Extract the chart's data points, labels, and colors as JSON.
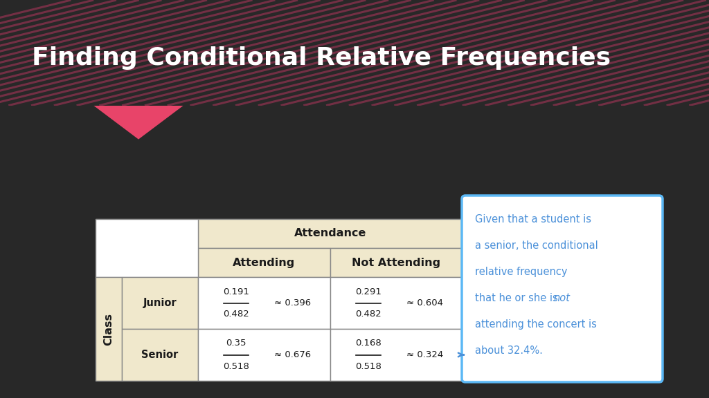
{
  "title": "Finding Conditional Relative Frequencies",
  "title_color": "#FFFFFF",
  "header_bg": "#E84469",
  "body_bg": "#282828",
  "table_header_bg": "#F0E8CC",
  "table_row_label_bg": "#F0E8CC",
  "col_header": "Attendance",
  "col_sub1": "Attending",
  "col_sub2": "Not Attending",
  "row_label": "Class",
  "row1": "Junior",
  "row2": "Senior",
  "junior_attending_num": "0.191",
  "junior_attending_den": "0.482",
  "junior_attending_approx": "0.396",
  "junior_notattending_num": "0.291",
  "junior_notattending_den": "0.482",
  "junior_notattending_approx": "0.604",
  "senior_attending_num": "0.35",
  "senior_attending_den": "0.518",
  "senior_attending_approx": "0.676",
  "senior_notattending_num": "0.168",
  "senior_notattending_den": "0.518",
  "senior_notattending_approx": "0.324",
  "annotation_line1": "Given that a student is",
  "annotation_line2": "a senior, the conditional",
  "annotation_line3": "relative frequency",
  "annotation_line4_pre": "that he or she is ",
  "annotation_line4_italic": "not",
  "annotation_line4_post": "",
  "annotation_line5": "attending the concert is",
  "annotation_line6": "about 32.4%.",
  "annotation_border": "#5BB8F5",
  "annotation_text_color": "#4A90D9",
  "arrow_color": "#4A90D9",
  "stripe_color": "#D03868"
}
